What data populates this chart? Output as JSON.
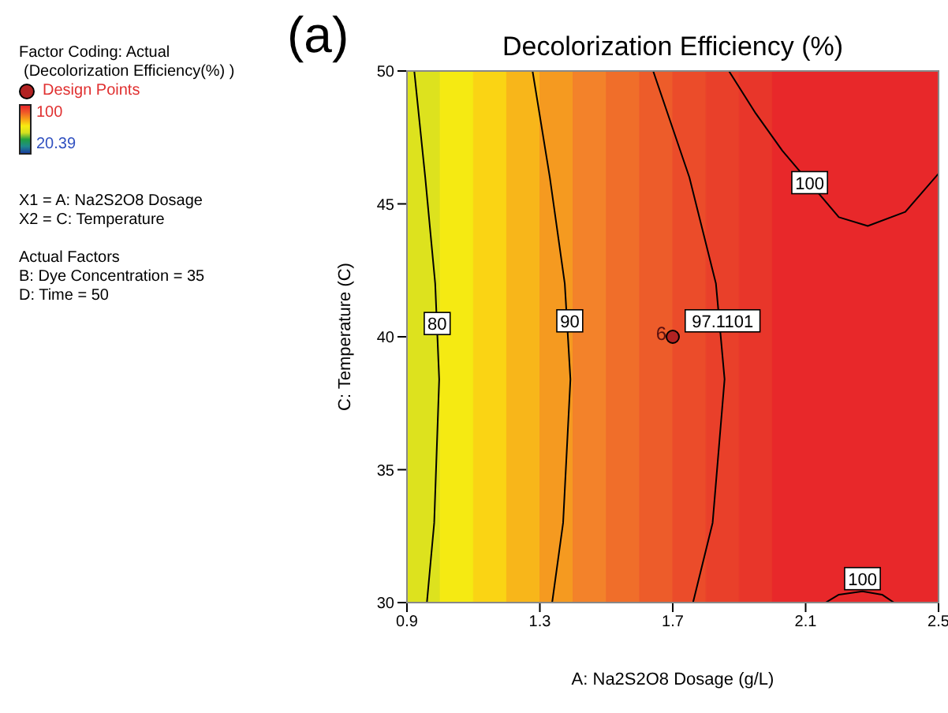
{
  "chart_data": {
    "type": "line",
    "title": "Decolorization Efficiency (%)",
    "xlabel": "A: Na2S2O8 Dosage (g/L)",
    "ylabel": "C: Temperature (C)",
    "annotations": [
      "(a)",
      "Factor Coding: Actual",
      "(Decolorization Efficiency(%) )",
      "100",
      "20.39",
      "X1 = A: Na2S2O8 Dosage",
      "X2 = C: Temperature",
      "Actual Factors",
      "B: Dye Concentration = 35",
      "D: Time = 50",
      {
        "text": "80",
        "x": 0.991,
        "y": 40.5
      },
      {
        "text": "90",
        "x": 1.39,
        "y": 40.6
      },
      {
        "text": "97.1101",
        "x": 1.85,
        "y": 40.6
      },
      {
        "text": "100",
        "x": 2.112,
        "y": 45.8
      },
      {
        "text": "100",
        "x": 2.271,
        "y": 30.9
      },
      {
        "text": "6",
        "x": 1.7,
        "y": 40
      }
    ],
    "xlim": [
      0.9,
      2.5
    ],
    "xticks": [
      0.9,
      1.3,
      1.7,
      2.1,
      2.5
    ],
    "ylim": [
      30,
      50
    ],
    "yticks": [
      30,
      35,
      40,
      45,
      50
    ],
    "legend": "left",
    "marker": "none",
    "bands": [
      {
        "axis": "x",
        "from": 0.9,
        "to": 1.0,
        "color": "#dde21e"
      },
      {
        "axis": "x",
        "from": 1.0,
        "to": 1.1,
        "color": "#f5ea12"
      },
      {
        "axis": "x",
        "from": 1.1,
        "to": 1.2,
        "color": "#fad414"
      },
      {
        "axis": "x",
        "from": 1.2,
        "to": 1.3,
        "color": "#f8b61a"
      },
      {
        "axis": "x",
        "from": 1.3,
        "to": 1.4,
        "color": "#f59a20"
      },
      {
        "axis": "x",
        "from": 1.4,
        "to": 1.5,
        "color": "#f3822a"
      },
      {
        "axis": "x",
        "from": 1.5,
        "to": 1.6,
        "color": "#f06e2a"
      },
      {
        "axis": "x",
        "from": 1.6,
        "to": 1.7,
        "color": "#ed5c2a"
      },
      {
        "axis": "x",
        "from": 1.7,
        "to": 1.8,
        "color": "#eb4c2a"
      },
      {
        "axis": "x",
        "from": 1.8,
        "to": 1.9,
        "color": "#e9402a"
      },
      {
        "axis": "x",
        "from": 1.9,
        "to": 2.0,
        "color": "#e8362a"
      },
      {
        "axis": "x",
        "from": 2.0,
        "to": 2.5,
        "color": "#e8282a"
      }
    ],
    "series": [
      {
        "type": "line",
        "color": "#000000",
        "x": [
          0.922,
          0.955,
          0.985,
          0.997,
          0.982,
          0.96
        ],
        "values": [
          50,
          46,
          42,
          38.4,
          33,
          30
        ]
      },
      {
        "type": "line",
        "color": "#000000",
        "x": [
          1.278,
          1.33,
          1.375,
          1.392,
          1.37,
          1.337
        ],
        "values": [
          50,
          46,
          42,
          38.4,
          33,
          30
        ]
      },
      {
        "type": "line",
        "color": "#000000",
        "x": [
          1.641,
          1.75,
          1.83,
          1.856,
          1.82,
          1.761
        ],
        "values": [
          50,
          46,
          42,
          38.4,
          33,
          30
        ]
      },
      {
        "type": "line",
        "color": "#000000",
        "x": [
          1.869,
          1.95,
          2.03,
          2.2,
          2.287,
          2.4,
          2.5
        ],
        "values": [
          50,
          48.4,
          47,
          44.5,
          44.17,
          44.7,
          46.14
        ]
      },
      {
        "type": "line",
        "color": "#000000",
        "x": [
          2.16,
          2.2,
          2.271,
          2.33,
          2.366
        ],
        "values": [
          30,
          30.3,
          30.42,
          30.3,
          30
        ]
      },
      {
        "type": "scatter",
        "name": "Design Points",
        "color": "#b22222",
        "marker": "circle",
        "x": [
          1.7
        ],
        "values": [
          40
        ]
      }
    ]
  }
}
